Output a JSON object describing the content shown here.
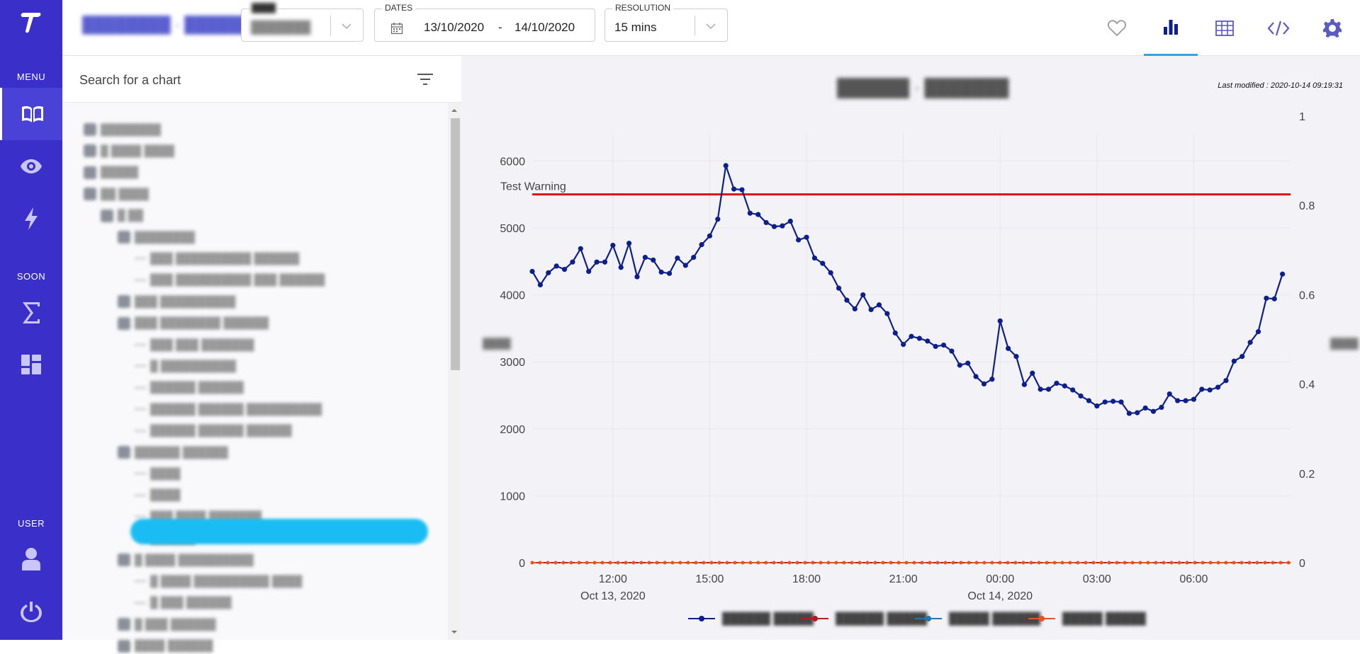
{
  "rail": {
    "menu_label": "MENU",
    "soon_label": "SOON",
    "user_label": "USER",
    "items": [
      {
        "icon": "book-icon",
        "active": true
      },
      {
        "icon": "eye-icon",
        "active": false
      },
      {
        "icon": "lightning-icon",
        "active": false
      },
      {
        "icon": "sigma-icon",
        "active": false
      },
      {
        "icon": "dashboard-icon",
        "active": false
      },
      {
        "icon": "user-icon",
        "active": false
      },
      {
        "icon": "power-icon",
        "active": false
      }
    ]
  },
  "topbar": {
    "app_title": "████████ · ██████",
    "selector": {
      "label": "████",
      "value": "███████"
    },
    "dates": {
      "label": "DATES",
      "start": "13/10/2020",
      "separator": "-",
      "end": "14/10/2020"
    },
    "resolution": {
      "label": "RESOLUTION",
      "value": "15 mins"
    },
    "icons": [
      "heart-icon",
      "bar-chart-icon",
      "table-icon",
      "code-icon",
      "gear-icon"
    ]
  },
  "panel": {
    "search_placeholder": "Search for a chart",
    "tree": [
      "████████",
      "█ ████ ████",
      "█████",
      "██ ████",
      "█ ██",
      "████████",
      "███ ██████████ ██████",
      "███ ██████████ ███ ██████",
      "███ ██████████",
      "███ ████████ ██████",
      "███ ███ ███████",
      "█ ██████████",
      "██████ ██████",
      "██████ ██████ ██████████",
      "██████ ██████ ██████",
      "██████ ██████",
      "████",
      "████",
      "███ ████ ███████",
      "██████",
      "█ ████ ██████████",
      "█ ████ ██████████ ████",
      "█ ███ ██████",
      "█ ███ ██████",
      "████ ██████"
    ]
  },
  "chart": {
    "title": "██████ · ███████",
    "last_modified": "Last modified : 2020-10-14 09:19:31",
    "left_axis_title": "████",
    "right_axis_title": "████",
    "warning_label": "Test Warning",
    "x_tick_labels": [
      "12:00",
      "15:00",
      "18:00",
      "21:00",
      "00:00",
      "03:00",
      "06:00"
    ],
    "x_date_labels": [
      "Oct 13, 2020",
      "Oct 14, 2020"
    ],
    "y_left_ticks": [
      "0",
      "1000",
      "2000",
      "3000",
      "4000",
      "5000",
      "6000"
    ],
    "y_right_ticks": [
      "0",
      "0.2",
      "0.4",
      "0.6",
      "0.8",
      "1"
    ],
    "legend": [
      {
        "label": "██████ █████",
        "color": "#0d1f8c"
      },
      {
        "label": "██████ █████",
        "color": "#b31b1b"
      },
      {
        "label": "█████ ██████",
        "color": "#1f77b4"
      },
      {
        "label": "█████ █████",
        "color": "#e8541e"
      }
    ]
  },
  "chart_data": {
    "type": "line",
    "x_range": [
      "2020-10-13 09:30",
      "2020-10-14 09:00"
    ],
    "ylim": [
      0,
      6300
    ],
    "y2lim": [
      0,
      1
    ],
    "grid": true,
    "legend_position": "bottom",
    "threshold": {
      "label": "Test Warning",
      "value": 5500,
      "color": "#e01010"
    },
    "series": [
      {
        "color": "#0d1f8c",
        "x_start": "2020-10-13 09:30",
        "x_step_minutes": 15,
        "values": [
          4350,
          4150,
          4330,
          4430,
          4380,
          4490,
          4690,
          4350,
          4490,
          4490,
          4740,
          4410,
          4770,
          4270,
          4560,
          4520,
          4340,
          4320,
          4550,
          4440,
          4560,
          4750,
          4880,
          5130,
          5930,
          5580,
          5570,
          5220,
          5200,
          5080,
          5020,
          5030,
          5100,
          4820,
          4860,
          4550,
          4470,
          4330,
          4100,
          3920,
          3790,
          4000,
          3780,
          3850,
          3720,
          3430,
          3260,
          3380,
          3350,
          3310,
          3230,
          3250,
          3160,
          2950,
          2980,
          2780,
          2670,
          2740,
          3610,
          3200,
          3080,
          2660,
          2830,
          2590,
          2590,
          2680,
          2640,
          2580,
          2490,
          2420,
          2340,
          2400,
          2410,
          2400,
          2230,
          2240,
          2310,
          2260,
          2320,
          2520,
          2420,
          2420,
          2440,
          2590,
          2580,
          2620,
          2720,
          3010,
          3080,
          3290,
          3450,
          3950,
          3940,
          4310
        ]
      },
      {
        "color": "#b31b1b",
        "flat_value": 0
      },
      {
        "color": "#1f77b4",
        "flat_value": 0
      },
      {
        "color": "#e8541e",
        "flat_value": 0
      }
    ]
  }
}
